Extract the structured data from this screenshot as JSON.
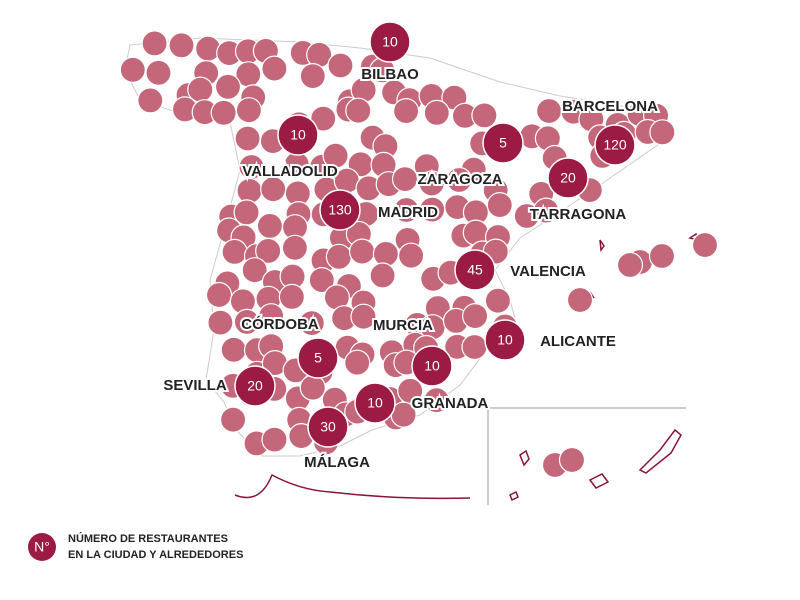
{
  "cities": [
    {
      "name": "BILBAO",
      "count": 10
    },
    {
      "name": "BARCELONA",
      "count": 120
    },
    {
      "name": "ZARAGOZA",
      "count": 5
    },
    {
      "name": "VALLADOLID",
      "count": 10
    },
    {
      "name": "MADRID",
      "count": 130
    },
    {
      "name": "TARRAGONA",
      "count": 20
    },
    {
      "name": "VALENCIA",
      "count": 45
    },
    {
      "name": "CÓRDOBA",
      "count": 5
    },
    {
      "name": "MURCIA",
      "count": 10
    },
    {
      "name": "ALICANTE",
      "count": 10
    },
    {
      "name": "SEVILLA",
      "count": 20
    },
    {
      "name": "GRANADA",
      "count": 10
    },
    {
      "name": "MÁLAGA",
      "count": 30
    }
  ],
  "legend": {
    "symbol": "N°",
    "lines": [
      "NÚMERO DE RESTAURANTES",
      "EN LA CIUDAD Y ALREDEDORES"
    ]
  }
}
